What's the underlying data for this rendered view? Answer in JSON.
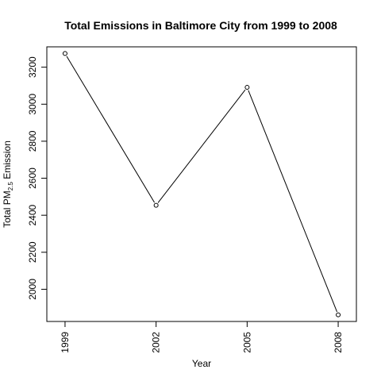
{
  "chart_data": {
    "type": "line",
    "title": "Total Emissions in Baltimore City from 1999 to 2008",
    "xlabel": "Year",
    "ylabel": {
      "prefix": "Total PM",
      "subscript": "2.5",
      "suffix": " Emission"
    },
    "x": [
      1999,
      2002,
      2005,
      2008
    ],
    "y": [
      3274,
      2454,
      3091,
      1862
    ],
    "x_ticks": [
      "1999",
      "2002",
      "2005",
      "2008"
    ],
    "y_ticks": [
      2000,
      2200,
      2400,
      2600,
      2800,
      3000,
      3200
    ],
    "xlim": [
      1998.4,
      2008.6
    ],
    "ylim": [
      1826,
      3310
    ],
    "markers": "open-circle",
    "line_color": "#000000",
    "grid": false,
    "legend": "none"
  }
}
